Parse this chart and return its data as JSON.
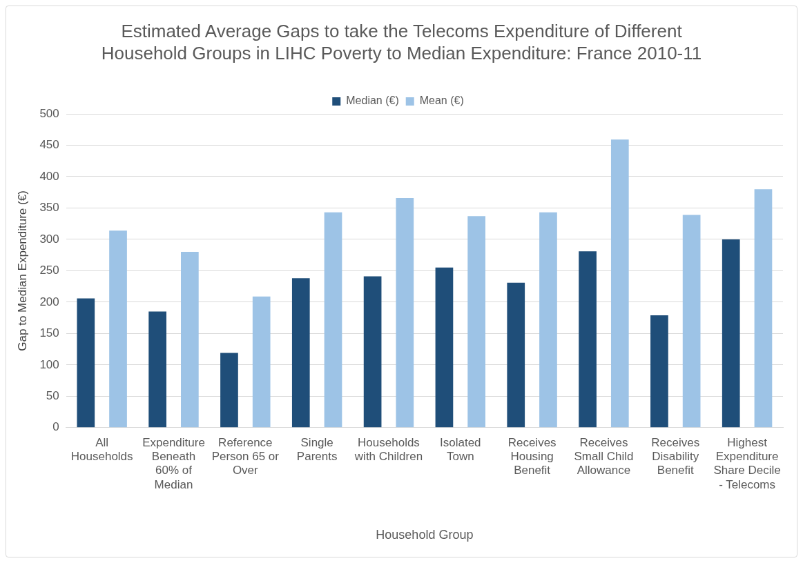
{
  "chart_data": {
    "type": "bar",
    "title": "Estimated Average Gaps to take the Telecoms Expenditure of Different Household Groups in LIHC Poverty to Median Expenditure: France 2010-11",
    "xlabel": "Household Group",
    "ylabel": "Gap to Median Expenditure (€)",
    "categories": [
      "All Households",
      "Expenditure Beneath 60% of Median",
      "Reference Person 65 or Over",
      "Single Parents",
      "Households with Children",
      "Isolated Town",
      "Receives Housing Benefit",
      "Receives Small Child Allowance",
      "Receives Disability Benefit",
      "Highest Expenditure Share Decile - Telecoms"
    ],
    "series": [
      {
        "name": "Median (€)",
        "color": "#1f4e79",
        "values": [
          206,
          185,
          119,
          238,
          241,
          255,
          231,
          281,
          179,
          300
        ]
      },
      {
        "name": "Mean (€)",
        "color": "#9dc3e6",
        "values": [
          314,
          280,
          209,
          343,
          366,
          337,
          343,
          459,
          339,
          380
        ]
      }
    ],
    "ylim": [
      0,
      500
    ],
    "yticks": [
      0,
      50,
      100,
      150,
      200,
      250,
      300,
      350,
      400,
      450,
      500
    ],
    "grid": "y",
    "legend": "top"
  }
}
